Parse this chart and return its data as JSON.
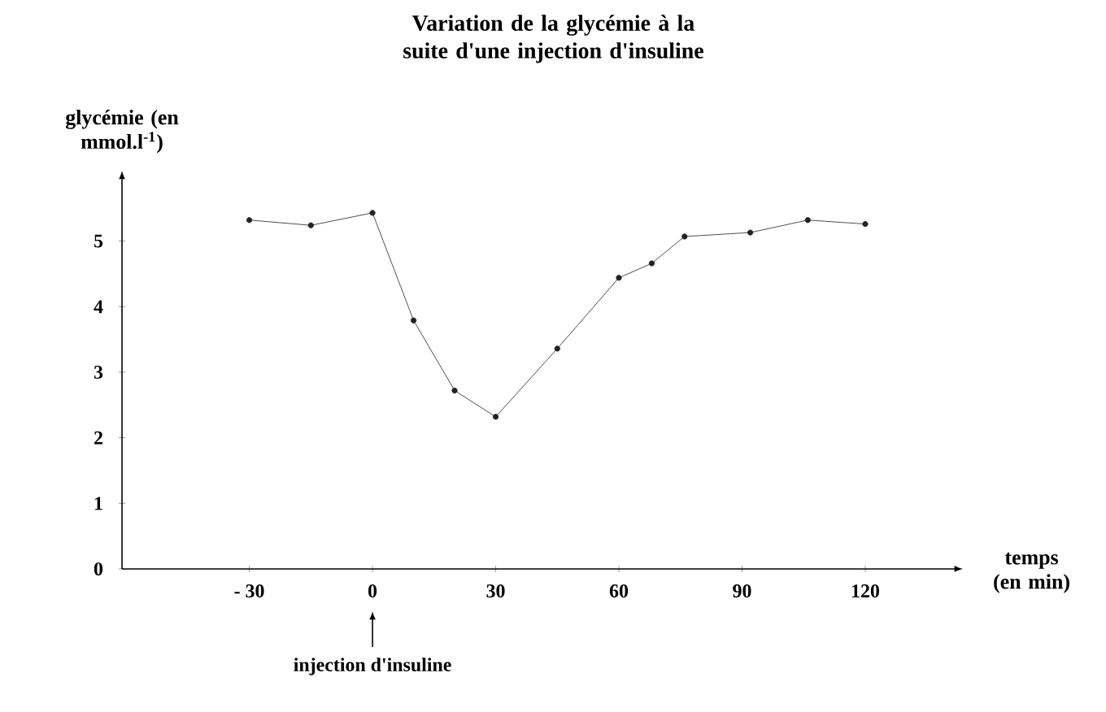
{
  "chart_data": {
    "type": "line",
    "title": "Variation de la glycémie à la suite d'une injection d'insuline",
    "xlabel": "temps (en min)",
    "ylabel": "glycémie (en mmol.l$^{-1}$)",
    "x": [
      -30,
      -15,
      0,
      10,
      20,
      30,
      45,
      60,
      68,
      76,
      92,
      106,
      120
    ],
    "values": [
      5.32,
      5.24,
      5.43,
      3.79,
      2.72,
      2.32,
      3.36,
      4.44,
      4.66,
      5.07,
      5.13,
      5.32,
      5.26
    ],
    "color": "#222222",
    "marker": "circle",
    "line_style": "solid",
    "grid": false,
    "xlim": [
      -61,
      141
    ],
    "ylim": [
      0,
      5.9
    ],
    "xticks": [
      {
        "value": -30,
        "label": "- 30"
      },
      0,
      30,
      60,
      90,
      120
    ],
    "yticks": [
      0,
      1,
      2,
      3,
      4,
      5
    ],
    "annotations": [
      "injection d'insuline"
    ]
  }
}
